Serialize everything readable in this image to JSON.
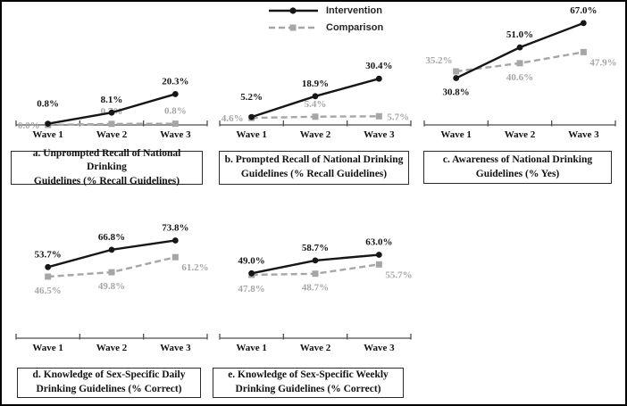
{
  "legend": {
    "items": [
      {
        "label": "Intervention",
        "color": "#161616",
        "line": "solid",
        "marker": "circle"
      },
      {
        "label": "Comparison",
        "color": "#a6a6a6",
        "line": "dashed",
        "marker": "square"
      }
    ]
  },
  "colors": {
    "axis_line": "#4d4d4d",
    "intervention": "#161616",
    "comparison": "#a6a6a6"
  },
  "chart_data": [
    {
      "id": "a",
      "type": "line",
      "title_line1": "a. Unprompted Recall of National Drinking",
      "title_line2": "Guidelines (% Recall Guidelines)",
      "categories": [
        "Wave 1",
        "Wave 2",
        "Wave 3"
      ],
      "ylim": [
        0,
        81
      ],
      "grid": false,
      "legend_position": "top-center-shared",
      "series": [
        {
          "name": "Intervention",
          "values": [
            0.8,
            8.1,
            20.3
          ],
          "labels": [
            "0.8%",
            "8.1%",
            "20.3%"
          ],
          "label_pos": [
            "above2",
            "above",
            "above"
          ]
        },
        {
          "name": "Comparison",
          "values": [
            0.0,
            0.7,
            0.8
          ],
          "labels": [
            "0.0%",
            "0.7%",
            "0.8%"
          ],
          "label_pos": [
            "left",
            "above",
            "above"
          ]
        }
      ]
    },
    {
      "id": "b",
      "type": "line",
      "title_line1": "b. Prompted Recall of National Drinking",
      "title_line2": "Guidelines (% Recall Guidelines)",
      "categories": [
        "Wave 1",
        "Wave 2",
        "Wave 3"
      ],
      "ylim": [
        0,
        81
      ],
      "grid": false,
      "legend_position": "top-center-shared",
      "series": [
        {
          "name": "Intervention",
          "values": [
            5.2,
            18.9,
            30.4
          ],
          "labels": [
            "5.2%",
            "18.9%",
            "30.4%"
          ],
          "label_pos": [
            "above2",
            "above",
            "above"
          ]
        },
        {
          "name": "Comparison",
          "values": [
            4.6,
            5.4,
            5.7
          ],
          "labels": [
            "4.6%",
            "5.4%",
            "5.7%"
          ],
          "label_pos": [
            "left",
            "above",
            "right"
          ]
        }
      ]
    },
    {
      "id": "c",
      "type": "line",
      "title_line1": "c. Awareness of National Drinking",
      "title_line2": "Guidelines (% Yes)",
      "categories": [
        "Wave 1",
        "Wave 2",
        "Wave 3"
      ],
      "ylim": [
        0,
        81
      ],
      "grid": false,
      "legend_position": "top-center-shared",
      "series": [
        {
          "name": "Intervention",
          "values": [
            30.8,
            51.0,
            67.0
          ],
          "labels": [
            "30.8%",
            "51.0%",
            "67.0%"
          ],
          "label_pos": [
            "below",
            "above",
            "above"
          ]
        },
        {
          "name": "Comparison",
          "values": [
            35.2,
            40.6,
            47.9
          ],
          "labels": [
            "35.2%",
            "40.6%",
            "47.9%"
          ],
          "label_pos": [
            "upleft",
            "below",
            "belowright"
          ]
        }
      ]
    },
    {
      "id": "d",
      "type": "line",
      "title_line1": "d. Knowledge of Sex-Specific Daily",
      "title_line2": "Drinking Guidelines (% Correct)",
      "categories": [
        "Wave 1",
        "Wave 2",
        "Wave 3"
      ],
      "ylim": [
        0,
        93
      ],
      "grid": false,
      "legend_position": "top-center-shared",
      "series": [
        {
          "name": "Intervention",
          "values": [
            53.7,
            66.8,
            73.8
          ],
          "labels": [
            "53.7%",
            "66.8%",
            "73.8%"
          ],
          "label_pos": [
            "above",
            "above",
            "above"
          ]
        },
        {
          "name": "Comparison",
          "values": [
            46.5,
            49.8,
            61.2
          ],
          "labels": [
            "46.5%",
            "49.8%",
            "61.2%"
          ],
          "label_pos": [
            "below",
            "below",
            "belowright"
          ]
        }
      ]
    },
    {
      "id": "e",
      "type": "line",
      "title_line1": "e. Knowledge of Sex-Specific Weekly",
      "title_line2": "Drinking Guidelines (% Correct)",
      "categories": [
        "Wave 1",
        "Wave 2",
        "Wave 3"
      ],
      "ylim": [
        0,
        93
      ],
      "grid": false,
      "legend_position": "top-center-shared",
      "series": [
        {
          "name": "Intervention",
          "values": [
            49.0,
            58.7,
            63.0
          ],
          "labels": [
            "49.0%",
            "58.7%",
            "63.0%"
          ],
          "label_pos": [
            "above",
            "above",
            "above"
          ]
        },
        {
          "name": "Comparison",
          "values": [
            47.8,
            48.7,
            55.7
          ],
          "labels": [
            "47.8%",
            "48.7%",
            "55.7%"
          ],
          "label_pos": [
            "below",
            "below",
            "belowright"
          ]
        }
      ]
    }
  ]
}
